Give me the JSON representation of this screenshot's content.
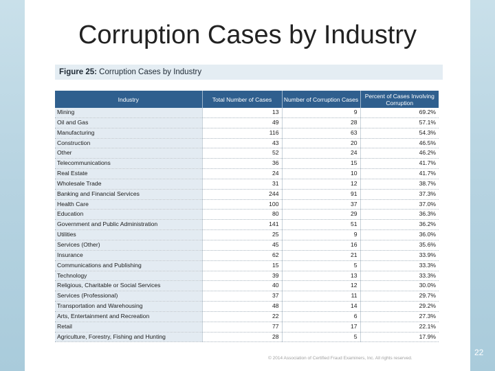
{
  "slide": {
    "title": "Corruption Cases by Industry",
    "page_number": "22"
  },
  "figure": {
    "label": "Figure 25:",
    "title": "Corruption Cases by Industry",
    "footer": "© 2014 Association of Certified Fraud Examiners, Inc. All rights reserved."
  },
  "table": {
    "headers": [
      "Industry",
      "Total Number of Cases",
      "Number of Corruption Cases",
      "Percent of Cases Involving Corruption"
    ],
    "rows": [
      [
        "Mining",
        "13",
        "9",
        "69.2%"
      ],
      [
        "Oil and Gas",
        "49",
        "28",
        "57.1%"
      ],
      [
        "Manufacturing",
        "116",
        "63",
        "54.3%"
      ],
      [
        "Construction",
        "43",
        "20",
        "46.5%"
      ],
      [
        "Other",
        "52",
        "24",
        "46.2%"
      ],
      [
        "Telecommunications",
        "36",
        "15",
        "41.7%"
      ],
      [
        "Real Estate",
        "24",
        "10",
        "41.7%"
      ],
      [
        "Wholesale Trade",
        "31",
        "12",
        "38.7%"
      ],
      [
        "Banking and Financial Services",
        "244",
        "91",
        "37.3%"
      ],
      [
        "Health Care",
        "100",
        "37",
        "37.0%"
      ],
      [
        "Education",
        "80",
        "29",
        "36.3%"
      ],
      [
        "Government and Public Administration",
        "141",
        "51",
        "36.2%"
      ],
      [
        "Utilities",
        "25",
        "9",
        "36.0%"
      ],
      [
        "Services (Other)",
        "45",
        "16",
        "35.6%"
      ],
      [
        "Insurance",
        "62",
        "21",
        "33.9%"
      ],
      [
        "Communications and Publishing",
        "15",
        "5",
        "33.3%"
      ],
      [
        "Technology",
        "39",
        "13",
        "33.3%"
      ],
      [
        "Religious, Charitable or Social Services",
        "40",
        "12",
        "30.0%"
      ],
      [
        "Services (Professional)",
        "37",
        "11",
        "29.7%"
      ],
      [
        "Transportation and Warehousing",
        "48",
        "14",
        "29.2%"
      ],
      [
        "Arts, Entertainment and Recreation",
        "22",
        "6",
        "27.3%"
      ],
      [
        "Retail",
        "77",
        "17",
        "22.1%"
      ],
      [
        "Agriculture, Forestry, Fishing and Hunting",
        "28",
        "5",
        "17.9%"
      ]
    ]
  }
}
